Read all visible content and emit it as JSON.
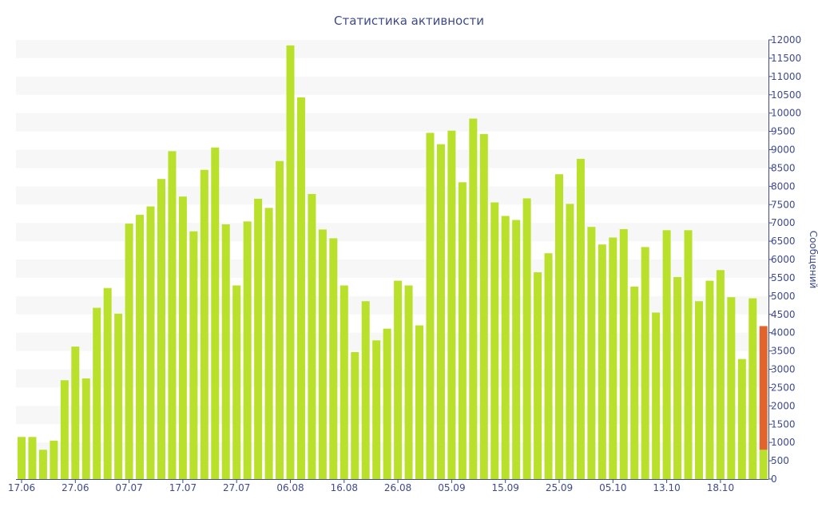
{
  "chart_data": {
    "type": "bar",
    "title": "Статистика активности",
    "ylabel": "Сообщений",
    "xlabel": "",
    "ylim": [
      0,
      12000
    ],
    "y_ticks": [
      0,
      500,
      1000,
      1500,
      2000,
      2500,
      3000,
      3500,
      4000,
      4500,
      5000,
      5500,
      6000,
      6500,
      7000,
      7500,
      8000,
      8500,
      9000,
      9500,
      10000,
      10500,
      11000,
      11500,
      12000
    ],
    "x_tick_labels": [
      {
        "label": "17.06",
        "index": 0
      },
      {
        "label": "27.06",
        "index": 5
      },
      {
        "label": "07.07",
        "index": 10
      },
      {
        "label": "17.07",
        "index": 15
      },
      {
        "label": "27.07",
        "index": 20
      },
      {
        "label": "06.08",
        "index": 25
      },
      {
        "label": "16.08",
        "index": 30
      },
      {
        "label": "26.08",
        "index": 35
      },
      {
        "label": "05.09",
        "index": 40
      },
      {
        "label": "15.09",
        "index": 45
      },
      {
        "label": "25.09",
        "index": 50
      },
      {
        "label": "05.10",
        "index": 55
      },
      {
        "label": "13.10",
        "index": 60
      },
      {
        "label": "18.10",
        "index": 65
      }
    ],
    "y_axis_position": "right",
    "grid": "horizontal alternating bands",
    "legend": "none",
    "colors": {
      "primary": "#b9e02a",
      "highlight": "#e2632c",
      "band": "#f7f7f7",
      "text": "#3e4a8c",
      "axis": "#3e4a8c"
    },
    "series": [
      {
        "values": [
          1150,
          1150,
          800,
          1050,
          2700,
          3620,
          2750,
          4680,
          5220,
          4520,
          6980,
          7220,
          7450,
          8200,
          8960,
          7720,
          6770,
          8450,
          9060,
          6960,
          5290,
          7040,
          7660,
          7410,
          8690,
          11850,
          10430,
          7790,
          6820,
          6580,
          5290,
          3470,
          4860,
          3790,
          4110,
          5420,
          5290,
          4200,
          9460,
          9150,
          9520,
          8110,
          9850,
          9430,
          7560,
          7190,
          7080,
          7670,
          5650,
          6170,
          8330,
          7520,
          8750,
          6890,
          6410,
          6600,
          6830,
          5260,
          6340,
          4550,
          6800,
          5520,
          6800,
          4860,
          5420,
          5710,
          4970,
          3280,
          4940,
          800
        ],
        "color": "#b9e02a"
      },
      {
        "values": [
          0,
          0,
          0,
          0,
          0,
          0,
          0,
          0,
          0,
          0,
          0,
          0,
          0,
          0,
          0,
          0,
          0,
          0,
          0,
          0,
          0,
          0,
          0,
          0,
          0,
          0,
          0,
          0,
          0,
          0,
          0,
          0,
          0,
          0,
          0,
          0,
          0,
          0,
          0,
          0,
          0,
          0,
          0,
          0,
          0,
          0,
          0,
          0,
          0,
          0,
          0,
          0,
          0,
          0,
          0,
          0,
          0,
          0,
          0,
          0,
          0,
          0,
          0,
          0,
          0,
          0,
          0,
          0,
          0,
          3380
        ],
        "color": "#e2632c"
      }
    ]
  }
}
